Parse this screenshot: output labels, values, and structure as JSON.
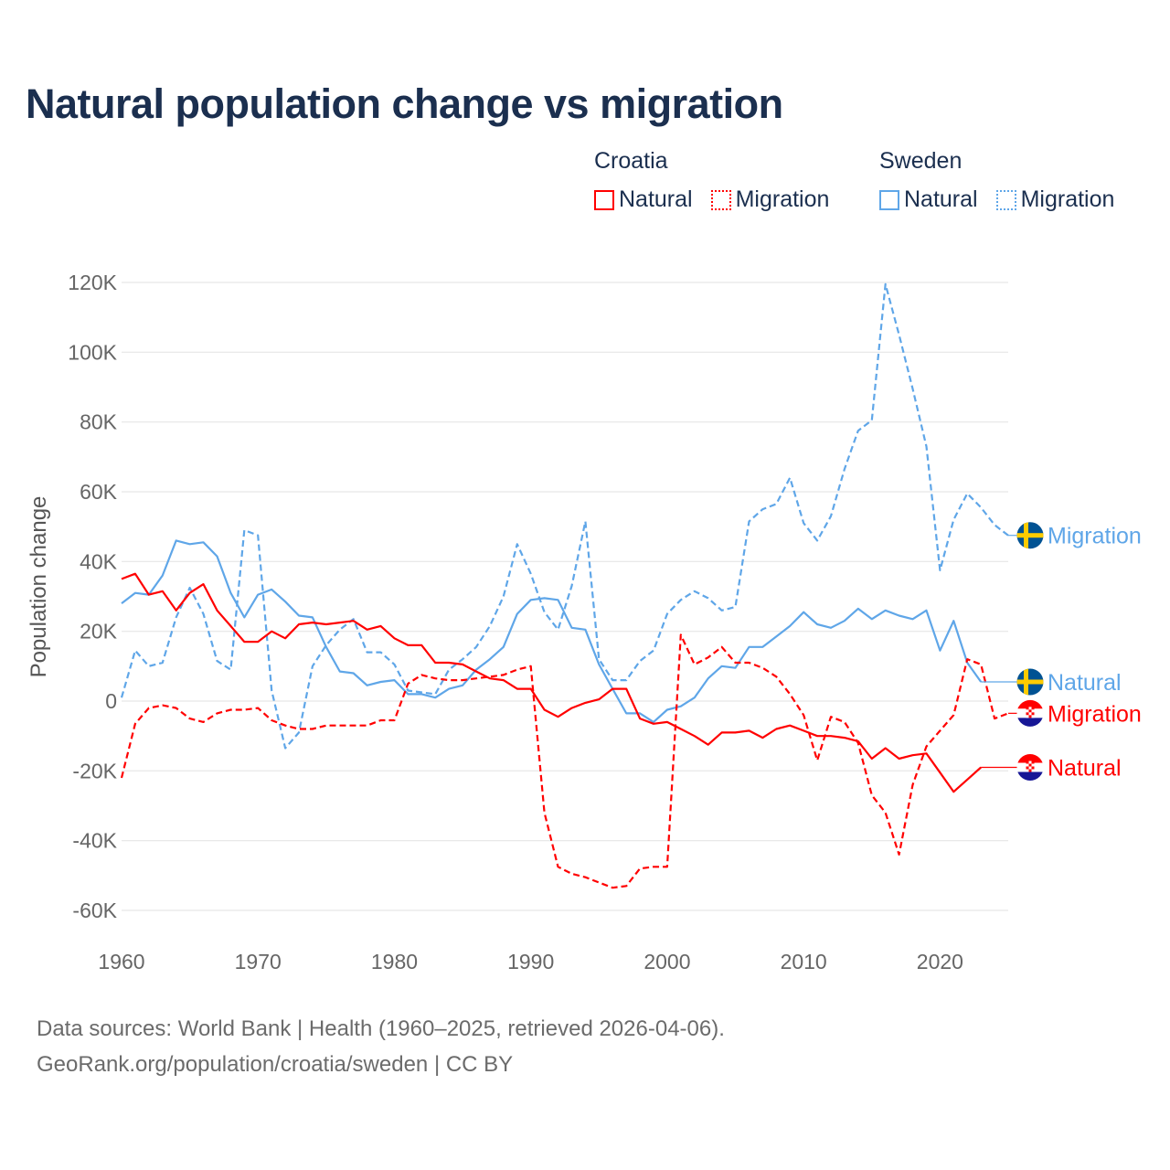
{
  "chart_data": {
    "type": "line",
    "title": "Natural population change vs migration",
    "xlabel": "",
    "ylabel": "Population change",
    "xlim": [
      1960,
      2025
    ],
    "ylim": [
      -60000,
      120000
    ],
    "x_ticks": [
      1960,
      1970,
      1980,
      1990,
      2000,
      2010,
      2020
    ],
    "x_tick_labels": [
      "1960",
      "1970",
      "1980",
      "1990",
      "2000",
      "2010",
      "2020"
    ],
    "y_ticks": [
      120000,
      100000,
      80000,
      60000,
      40000,
      20000,
      0,
      -20000,
      -40000,
      -60000
    ],
    "y_tick_labels": [
      "120K",
      "100K",
      "80K",
      "60K",
      "40K",
      "20K",
      "0",
      "-20K",
      "-40K",
      "-60K"
    ],
    "grid": true,
    "legend": {
      "placement": "top-right",
      "groups": [
        {
          "name": "Croatia",
          "items": [
            "Natural",
            "Migration"
          ]
        },
        {
          "name": "Sweden",
          "items": [
            "Natural",
            "Migration"
          ]
        }
      ]
    },
    "series": [
      {
        "name": "Croatia Natural",
        "country": "Croatia",
        "label": "Natural",
        "color": "#ff0000",
        "dash": false,
        "flag": "croatia",
        "x_start": 1960,
        "values": [
          35000,
          36500,
          30500,
          31500,
          26000,
          31000,
          33500,
          26000,
          21500,
          17000,
          17000,
          20000,
          18000,
          22000,
          22500,
          22000,
          22500,
          23000,
          20500,
          21500,
          18000,
          16000,
          16000,
          11000,
          11000,
          10500,
          8500,
          6500,
          6000,
          3500,
          3500,
          -2500,
          -4500,
          -2000,
          -500,
          500,
          3500,
          3500,
          -5000,
          -6500,
          -6000,
          -8000,
          -10000,
          -12500,
          -9000,
          -9000,
          -8500,
          -10500,
          -8000,
          -7000,
          -8500,
          -10000,
          -10000,
          -10500,
          -11500,
          -16500,
          -13500,
          -16500,
          -15500,
          -15000,
          -20500,
          -26000,
          -22500,
          -19000
        ]
      },
      {
        "name": "Croatia Migration",
        "country": "Croatia",
        "label": "Migration",
        "color": "#ff0000",
        "dash": true,
        "flag": "croatia",
        "x_start": 1960,
        "values": [
          -22000,
          -6500,
          -2000,
          -1200,
          -2000,
          -5000,
          -6000,
          -3500,
          -2500,
          -2500,
          -2000,
          -5500,
          -7000,
          -8000,
          -8000,
          -7000,
          -7000,
          -7000,
          -7000,
          -5500,
          -5500,
          5000,
          7500,
          6500,
          6000,
          6000,
          6500,
          7000,
          7500,
          9000,
          10000,
          -32000,
          -47500,
          -49500,
          -50500,
          -52000,
          -53500,
          -53000,
          -48000,
          -47500,
          -47500,
          19000,
          10500,
          12500,
          15500,
          11000,
          11000,
          9500,
          7000,
          2000,
          -4000,
          -17000,
          -4500,
          -6000,
          -12000,
          -27000,
          -32000,
          -44000,
          -24000,
          -13000,
          -8500,
          -4000,
          12000,
          10500,
          -5000,
          -3500
        ]
      },
      {
        "name": "Sweden Natural",
        "country": "Sweden",
        "label": "Natural",
        "color": "#5fa6e8",
        "dash": false,
        "flag": "sweden",
        "x_start": 1960,
        "values": [
          28000,
          31000,
          30500,
          36000,
          46000,
          45000,
          45500,
          41500,
          31000,
          24000,
          30500,
          32000,
          28500,
          24500,
          24000,
          15500,
          8500,
          8000,
          4500,
          5500,
          6000,
          2000,
          2000,
          1000,
          3500,
          4500,
          9000,
          12000,
          15500,
          25000,
          29000,
          29500,
          29000,
          21000,
          20500,
          10500,
          3500,
          -3500,
          -3500,
          -6000,
          -2500,
          -1500,
          1000,
          6500,
          10000,
          9500,
          15500,
          15500,
          18500,
          21500,
          25500,
          22000,
          21000,
          23000,
          26500,
          23500,
          26000,
          24500,
          23500,
          26000,
          14500,
          23000,
          11000,
          5500
        ]
      },
      {
        "name": "Sweden Migration",
        "country": "Sweden",
        "label": "Migration",
        "color": "#5fa6e8",
        "dash": true,
        "flag": "sweden",
        "x_start": 1960,
        "values": [
          1000,
          14500,
          10000,
          11000,
          24000,
          32500,
          25000,
          11500,
          9000,
          49000,
          47500,
          3000,
          -13500,
          -9000,
          10000,
          16000,
          20500,
          23500,
          14000,
          14000,
          10500,
          3000,
          2500,
          2000,
          9000,
          12000,
          15500,
          21500,
          30000,
          45000,
          36500,
          25500,
          20500,
          33000,
          51500,
          12000,
          6000,
          6000,
          11500,
          14500,
          25000,
          29000,
          31500,
          29500,
          26000,
          27000,
          51500,
          55000,
          56500,
          64000,
          51000,
          46000,
          53000,
          66500,
          77500,
          80500,
          119500,
          105000,
          89500,
          73000,
          37500,
          52000,
          59500,
          55500,
          50500,
          47500
        ]
      }
    ]
  },
  "legend": {
    "croatia": "Croatia",
    "sweden": "Sweden",
    "natural": "Natural",
    "migration": "Migration"
  },
  "footer": {
    "line1": "Data sources: World Bank | Health (1960–2025, retrieved 2026-04-06).",
    "line2": "GeoRank.org/population/croatia/sweden | CC BY"
  }
}
